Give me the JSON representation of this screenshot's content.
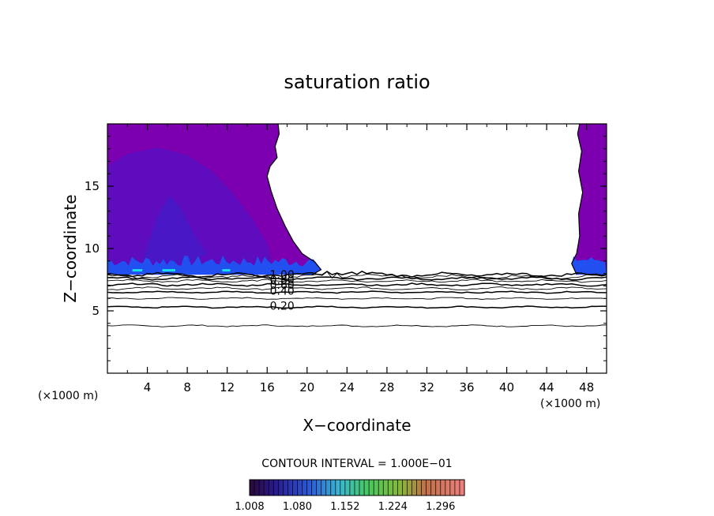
{
  "chart_data": {
    "type": "contour",
    "title": "saturation ratio",
    "xlabel": "X−coordinate",
    "ylabel": "Z−coordinate",
    "x_unit": "(×1000 m)",
    "xlim": [
      0,
      50
    ],
    "ylim": [
      0,
      20
    ],
    "x_ticks": [
      4,
      8,
      12,
      16,
      20,
      24,
      28,
      32,
      36,
      40,
      44,
      48
    ],
    "y_ticks": [
      5,
      10,
      15
    ],
    "contour_labels": [
      {
        "text": "1.00",
        "x": 17.5,
        "z": 7.9
      },
      {
        "text": "0.80",
        "x": 17.5,
        "z": 7.5
      },
      {
        "text": "0.60",
        "x": 17.5,
        "z": 7.1
      },
      {
        "text": "0.40",
        "x": 17.5,
        "z": 6.6
      },
      {
        "text": "0.20",
        "x": 17.5,
        "z": 5.4
      }
    ],
    "contour_levels": [
      {
        "value": 0.1,
        "z": 3.8
      },
      {
        "value": 0.2,
        "z": 5.3
      },
      {
        "value": 0.3,
        "z": 6.0
      },
      {
        "value": 0.4,
        "z": 6.5
      },
      {
        "value": 0.5,
        "z": 6.8
      },
      {
        "value": 0.6,
        "z": 7.1
      },
      {
        "value": 0.7,
        "z": 7.4
      },
      {
        "value": 0.8,
        "z": 7.6
      },
      {
        "value": 0.9,
        "z": 7.75
      },
      {
        "value": 1.0,
        "z": 7.9
      }
    ],
    "contour_interval_label": "CONTOUR INTERVAL = 1.000E−01",
    "colorbar": {
      "labels": [
        "1.008",
        "1.080",
        "1.152",
        "1.224",
        "1.296"
      ],
      "min": 1.008,
      "max": 1.332
    },
    "supersaturated_regions": [
      {
        "name": "left",
        "x_range": [
          0,
          21.5
        ],
        "z_range": [
          7.9,
          20
        ]
      },
      {
        "name": "right",
        "x_range": [
          46.5,
          50
        ],
        "z_range": [
          7.9,
          20
        ]
      }
    ],
    "colors": {
      "background_fill": "#7d00b0",
      "inner_fill": "#5e0cbd",
      "core_fill": "#4a17c7",
      "base_band": "#2250f0",
      "highlight": "#18e0e8"
    }
  }
}
